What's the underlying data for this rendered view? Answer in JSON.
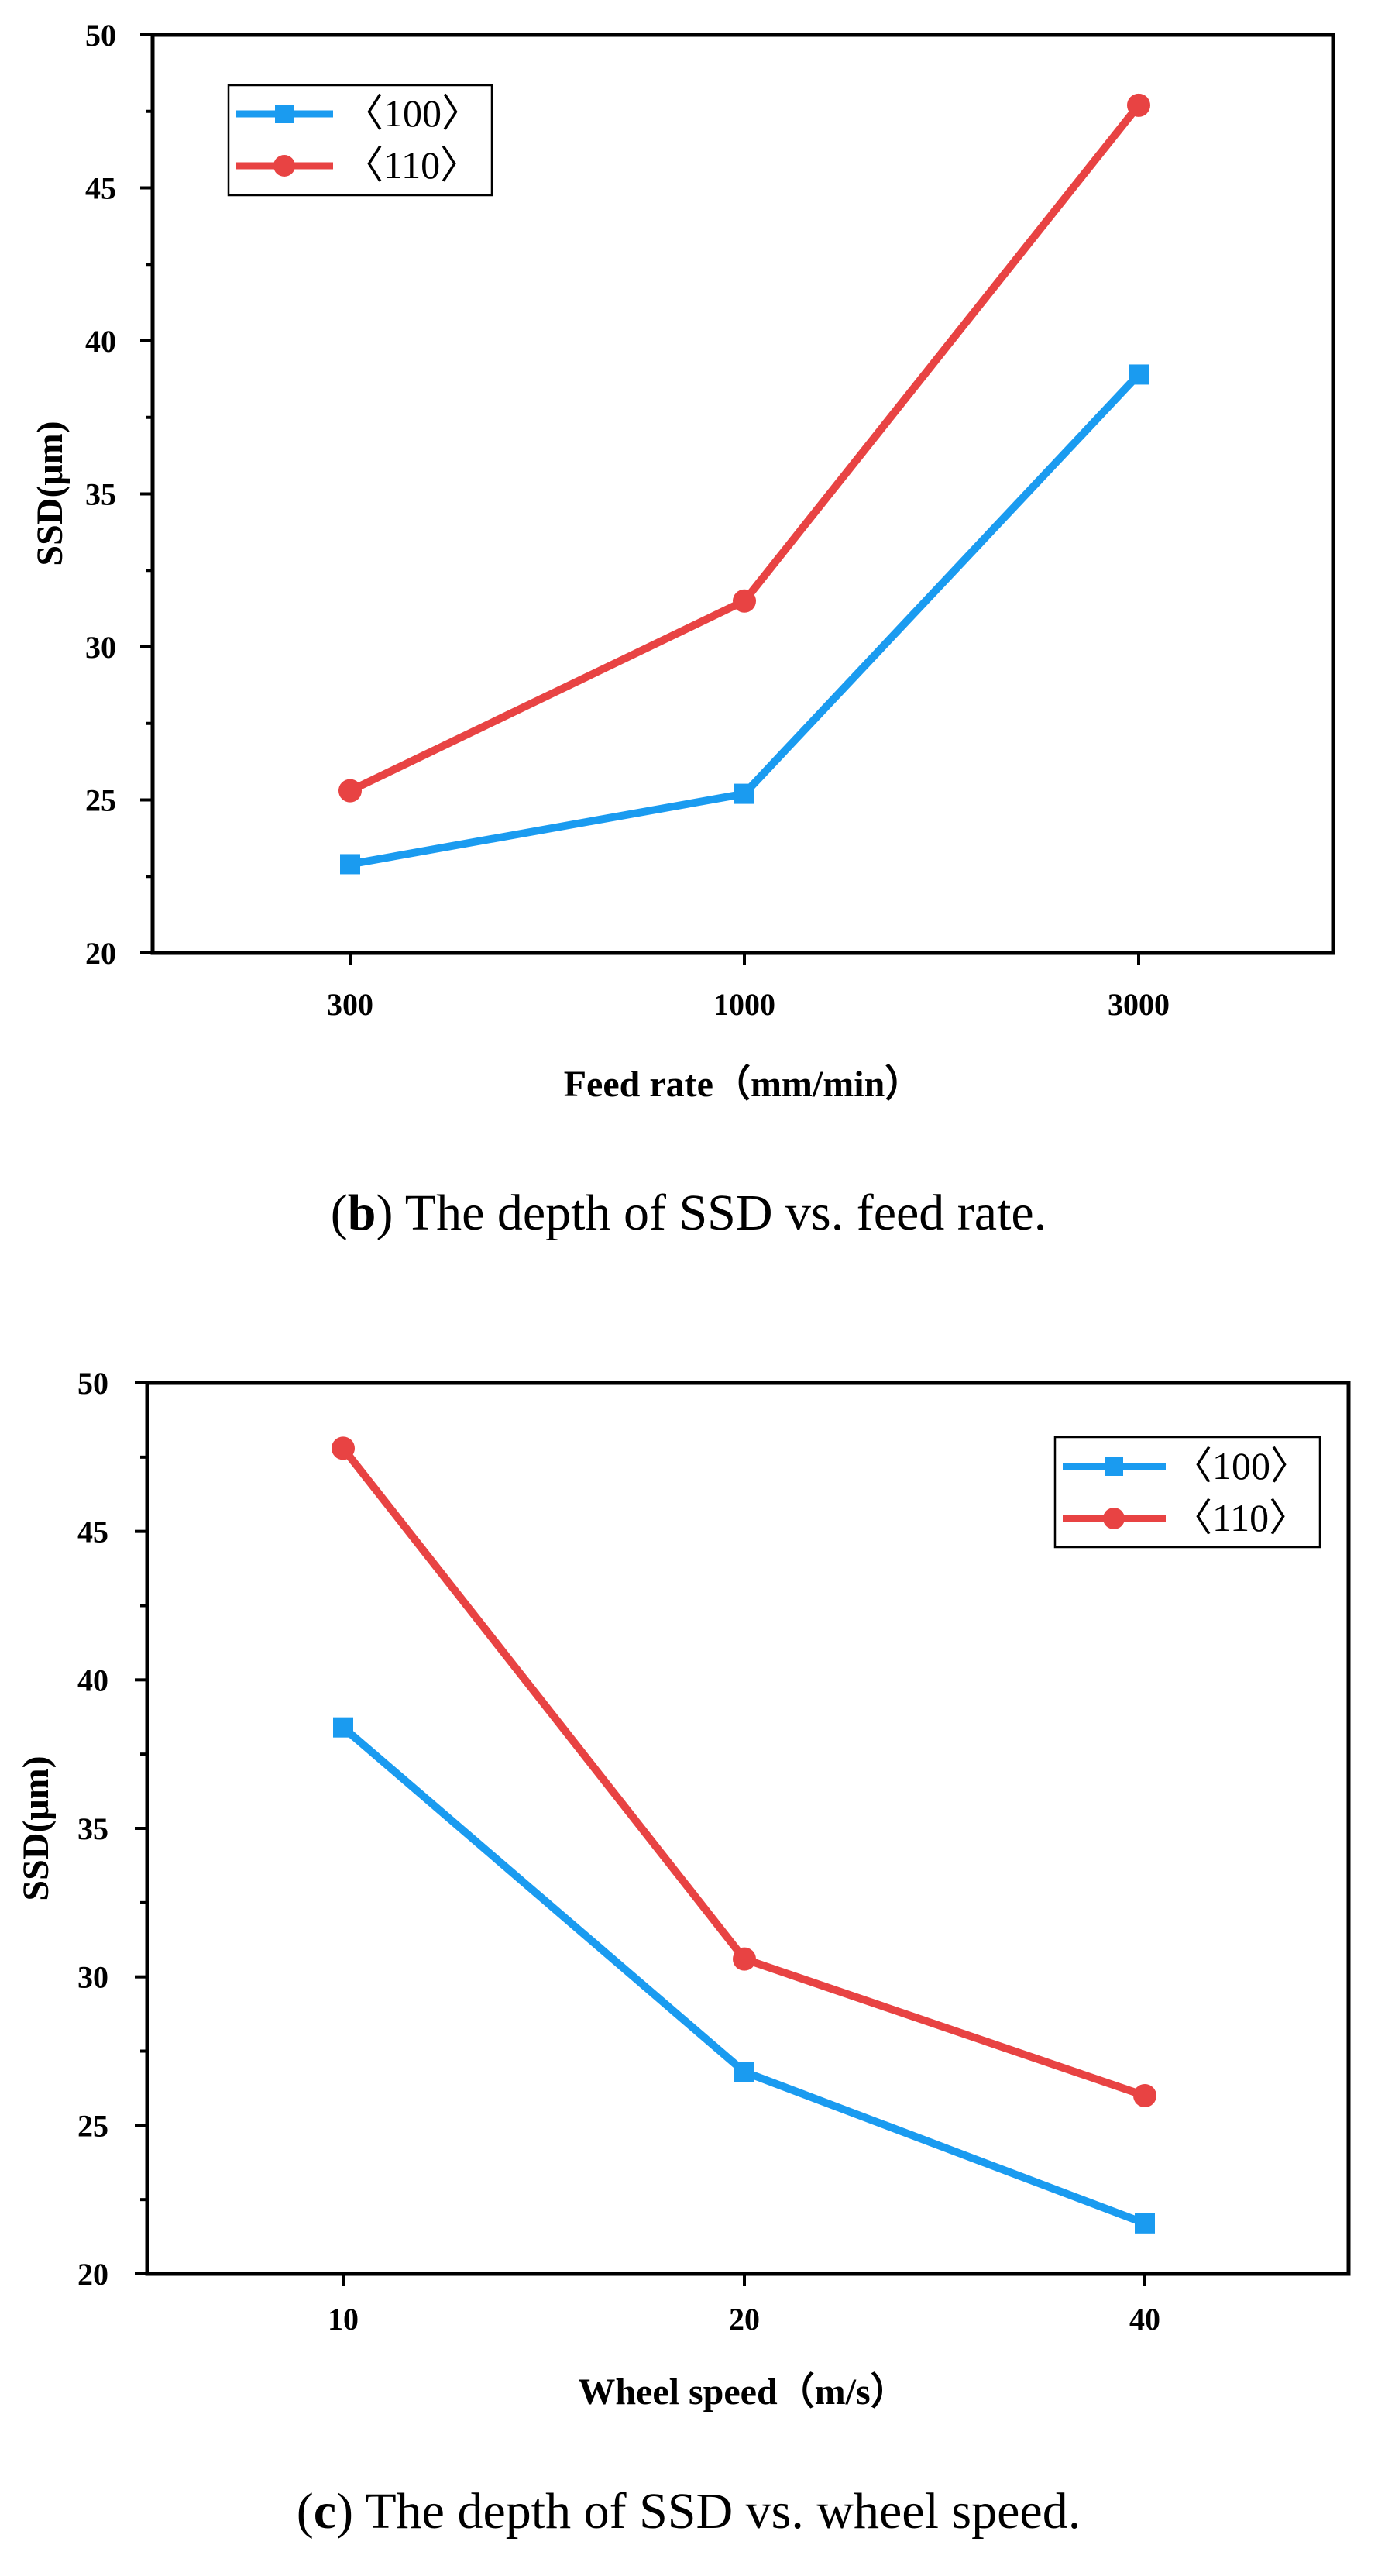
{
  "chart_data": [
    {
      "type": "line",
      "panel_letter": "b",
      "caption_text": " The depth of SSD vs. feed rate.",
      "categories": [
        "300",
        "1000",
        "3000"
      ],
      "series": [
        {
          "name": "〈100〉",
          "color": "#1a9bf0",
          "marker": "square",
          "values": [
            22.9,
            25.2,
            38.9
          ]
        },
        {
          "name": "〈110〉",
          "color": "#e84343",
          "marker": "circle",
          "values": [
            25.3,
            31.5,
            47.7
          ]
        }
      ],
      "xlabel": "Feed rate（mm/min）",
      "ylabel": "SSD(μm)",
      "ylim": [
        20,
        50
      ],
      "yticks": [
        "20",
        "25",
        "30",
        "35",
        "40",
        "45",
        "50"
      ],
      "grid": false,
      "legend_position": "top-left"
    },
    {
      "type": "line",
      "panel_letter": "c",
      "caption_text": " The depth of SSD vs. wheel speed.",
      "categories": [
        "10",
        "20",
        "40"
      ],
      "series": [
        {
          "name": "〈100〉",
          "color": "#1a9bf0",
          "marker": "square",
          "values": [
            38.4,
            26.8,
            21.7
          ]
        },
        {
          "name": "〈110〉",
          "color": "#e84343",
          "marker": "circle",
          "values": [
            47.8,
            30.6,
            26.0
          ]
        }
      ],
      "xlabel": "Wheel speed（m/s）",
      "ylabel": "SSD(μm)",
      "ylim": [
        20,
        50
      ],
      "yticks": [
        "20",
        "25",
        "30",
        "35",
        "40",
        "45",
        "50"
      ],
      "grid": false,
      "legend_position": "top-right"
    }
  ]
}
